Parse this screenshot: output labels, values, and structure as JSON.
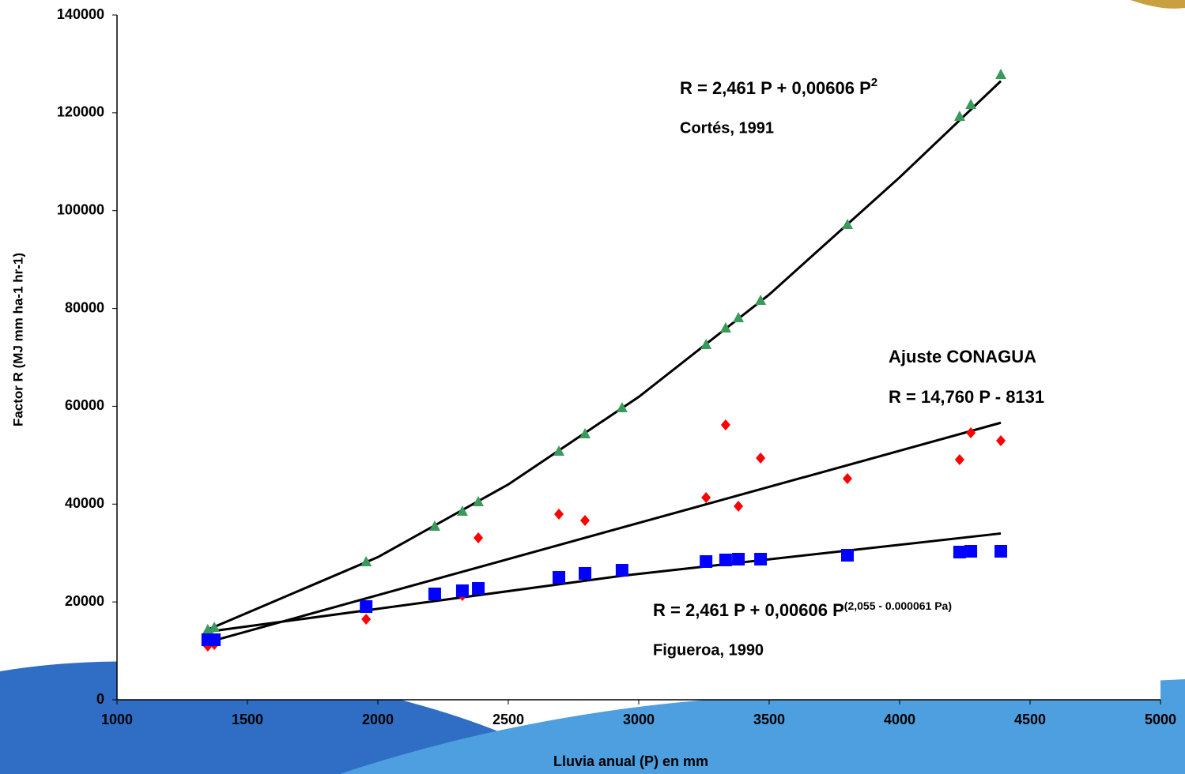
{
  "chart_data": {
    "type": "scatter",
    "x_label": "Lluvia anual (P) en mm",
    "y_label": "Factor R (MJ mm ha-1 hr-1)",
    "xlim": [
      1000,
      5000
    ],
    "xticks": [
      1000,
      1500,
      2000,
      2500,
      3000,
      3500,
      4000,
      4500,
      5000
    ],
    "ylim": [
      0,
      140000
    ],
    "yticks": [
      0,
      20000,
      40000,
      60000,
      80000,
      100000,
      120000,
      140000
    ],
    "grid": false,
    "series": [
      {
        "color": "#3a9a5b",
        "marker": "triangle",
        "x": [
          1348,
          1373,
          1955,
          2218,
          2324,
          2385,
          2694,
          2794,
          2936,
          3258,
          3333,
          3382,
          3467,
          3800,
          4230,
          4273,
          4388
        ],
        "values": [
          14210,
          14694,
          28096,
          35363,
          38430,
          40368,
          50702,
          54255,
          59584,
          72501,
          75892,
          77992,
          81544,
          97045,
          119167,
          121589,
          127725
        ]
      },
      {
        "color": "#ff0000",
        "marker": "diamond",
        "x": [
          1348,
          1373,
          1955,
          2324,
          2385,
          2694,
          2794,
          3258,
          3333,
          3382,
          3467,
          3800,
          4230,
          4273,
          4388
        ],
        "values": [
          10980,
          11303,
          16470,
          21314,
          33101,
          37946,
          36654,
          41337,
          56193,
          39561,
          49411,
          45212,
          49088,
          54578,
          52963
        ]
      },
      {
        "color": "#0000ff",
        "marker": "square",
        "x": [
          1348,
          1373,
          1955,
          2218,
          2324,
          2385,
          2694,
          2794,
          2936,
          3258,
          3333,
          3382,
          3467,
          3800,
          4230,
          4273,
          4388
        ],
        "values": [
          12272,
          12272,
          19054,
          21637,
          22283,
          22767,
          25028,
          25836,
          26481,
          28258,
          28581,
          28742,
          28742,
          29549,
          30195,
          30357,
          30357
        ]
      }
    ],
    "fits": [
      {
        "color": "#000000",
        "x": [
          1348,
          2000,
          2500,
          3000,
          3500,
          4000,
          4388
        ],
        "values": [
          14329,
          29162,
          44028,
          61923,
          82849,
          106804,
          126500
        ]
      },
      {
        "color": "#000000",
        "x": [
          1348,
          4388
        ],
        "values": [
          11766,
          56638
        ]
      },
      {
        "color": "#000000",
        "x": [
          1348,
          2936,
          4388
        ],
        "values": [
          13900,
          25350,
          34000
        ]
      }
    ],
    "annotations": [
      {
        "text": "R = 2,461 P + 0,00606 P",
        "sup": "2"
      },
      {
        "text": "Cortés, 1991"
      },
      {
        "text": "Ajuste CONAGUA"
      },
      {
        "text": "R = 14,760 P - 8131"
      },
      {
        "text": "R = 2,461 P + 0,00606 P",
        "sup": "(2,055 - 0.000061 Pa)"
      },
      {
        "text": "Figueroa,  1990"
      }
    ]
  }
}
